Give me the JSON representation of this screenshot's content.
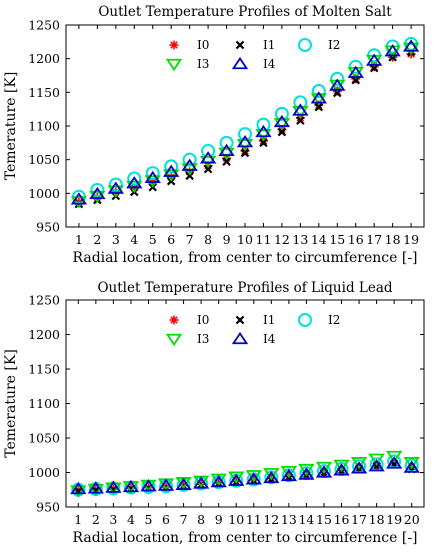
{
  "chart_data": [
    {
      "type": "scatter",
      "title": "Outlet Temperature Profiles of Molten Salt",
      "xlabel": "Radial location, from center to circumference [-]",
      "ylabel": "Temerature [K]",
      "x": [
        1,
        2,
        3,
        4,
        5,
        6,
        7,
        8,
        9,
        10,
        11,
        12,
        13,
        14,
        15,
        16,
        17,
        18,
        19
      ],
      "xlim": [
        0.3,
        19.7
      ],
      "ylim": [
        950,
        1250
      ],
      "yticks": [
        950,
        1000,
        1050,
        1100,
        1150,
        1200,
        1250
      ],
      "grid": false,
      "legend": "top-center",
      "series": [
        {
          "name": "I0",
          "marker": "asterisk",
          "color": "#ff0000",
          "values": [
            987,
            994,
            1002,
            1008,
            1016,
            1024,
            1032,
            1041,
            1052,
            1063,
            1078,
            1095,
            1112,
            1131,
            1152,
            1170,
            1188,
            1202,
            1207
          ]
        },
        {
          "name": "I1",
          "marker": "x",
          "color": "#000000",
          "values": [
            984,
            990,
            996,
            1002,
            1009,
            1018,
            1026,
            1036,
            1047,
            1060,
            1075,
            1091,
            1108,
            1128,
            1149,
            1168,
            1186,
            1202,
            1210
          ]
        },
        {
          "name": "I2",
          "marker": "circle",
          "color": "#00e0e0",
          "values": [
            995,
            1005,
            1013,
            1022,
            1030,
            1040,
            1050,
            1063,
            1075,
            1088,
            1102,
            1118,
            1135,
            1152,
            1170,
            1188,
            1205,
            1218,
            1222
          ]
        },
        {
          "name": "I3",
          "marker": "triangle-down",
          "color": "#00dd00",
          "values": [
            988,
            996,
            1004,
            1011,
            1019,
            1028,
            1037,
            1048,
            1060,
            1073,
            1088,
            1104,
            1122,
            1141,
            1161,
            1180,
            1198,
            1212,
            1216
          ]
        },
        {
          "name": "I4",
          "marker": "triangle-up",
          "color": "#0000cc",
          "values": [
            991,
            999,
            1007,
            1015,
            1023,
            1032,
            1041,
            1052,
            1063,
            1076,
            1091,
            1106,
            1123,
            1141,
            1160,
            1179,
            1197,
            1211,
            1218
          ]
        }
      ]
    },
    {
      "type": "scatter",
      "title": "Outlet Temperature Profiles of Liquid Lead",
      "xlabel": "Radial location, from center to circumference [-]",
      "ylabel": "Temerature [K]",
      "x": [
        1,
        2,
        3,
        4,
        5,
        6,
        7,
        8,
        9,
        10,
        11,
        12,
        13,
        14,
        15,
        16,
        17,
        18,
        19,
        20
      ],
      "xlim": [
        0.3,
        20.7
      ],
      "ylim": [
        950,
        1250
      ],
      "yticks": [
        950,
        1000,
        1050,
        1100,
        1150,
        1200,
        1250
      ],
      "grid": false,
      "legend": "top-center",
      "series": [
        {
          "name": "I0",
          "marker": "asterisk",
          "color": "#ff0000",
          "values": [
            974,
            975,
            976,
            977,
            978,
            979,
            981,
            983,
            985,
            987,
            989,
            991,
            994,
            997,
            1000,
            1003,
            1007,
            1010,
            1014,
            1008
          ]
        },
        {
          "name": "I1",
          "marker": "x",
          "color": "#000000",
          "values": [
            973,
            974,
            975,
            976,
            977,
            978,
            980,
            982,
            984,
            986,
            988,
            990,
            993,
            996,
            999,
            1002,
            1005,
            1009,
            1012,
            1005
          ]
        },
        {
          "name": "I2",
          "marker": "circle",
          "color": "#00e0e0",
          "values": [
            975,
            976,
            977,
            978,
            979,
            980,
            982,
            984,
            986,
            988,
            990,
            993,
            996,
            999,
            1002,
            1005,
            1009,
            1012,
            1016,
            1010
          ]
        },
        {
          "name": "I3",
          "marker": "triangle-down",
          "color": "#00dd00",
          "values": [
            974,
            976,
            978,
            980,
            982,
            984,
            986,
            988,
            991,
            994,
            996,
            999,
            1002,
            1005,
            1008,
            1011,
            1015,
            1020,
            1024,
            1015
          ]
        },
        {
          "name": "I4",
          "marker": "triangle-up",
          "color": "#0000cc",
          "values": [
            976,
            977,
            978,
            979,
            980,
            981,
            982,
            984,
            986,
            988,
            990,
            992,
            995,
            997,
            1000,
            1003,
            1006,
            1009,
            1013,
            1007
          ]
        }
      ]
    }
  ]
}
